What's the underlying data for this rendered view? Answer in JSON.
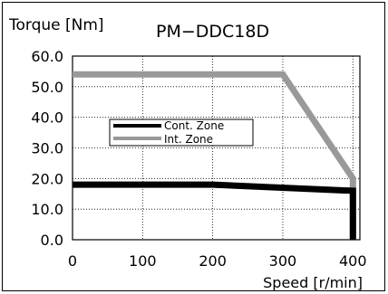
{
  "chart_data": {
    "type": "line",
    "title": "PM−DDC18D",
    "ylabel": "Torque [Nm]",
    "xlabel": "Speed [r/min]",
    "xlim": [
      0,
      410
    ],
    "ylim": [
      0,
      60
    ],
    "x_ticks": [
      "0",
      "100",
      "200",
      "300",
      "400"
    ],
    "y_ticks": [
      "0.0",
      "10.0",
      "20.0",
      "30.0",
      "40.0",
      "50.0",
      "60.0"
    ],
    "grid": true,
    "legend_position": "center-left",
    "series": [
      {
        "name": "Cont. Zone",
        "color": "#000000",
        "x": [
          0,
          200,
          400,
          400
        ],
        "y": [
          18,
          18,
          16,
          0
        ]
      },
      {
        "name": "Int. Zone",
        "color": "#999999",
        "x": [
          0,
          300,
          400,
          400
        ],
        "y": [
          54,
          54,
          20,
          0
        ]
      }
    ]
  }
}
